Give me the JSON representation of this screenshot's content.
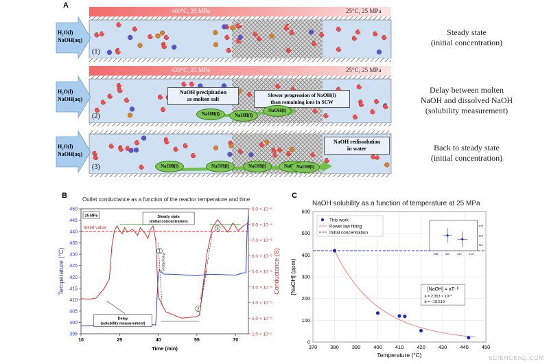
{
  "panelA": {
    "letter": "A",
    "inlet": {
      "water": "H₂O(l)",
      "naoh": "NaOH(aq)"
    },
    "rows": [
      {
        "num": "(1)",
        "hot": "400°C, 25 MPa",
        "cold": "25°C, 25 MPa",
        "desc": [
          "Steady state",
          "(initial concentration)"
        ],
        "notes": []
      },
      {
        "num": "(2)",
        "hot": "420°C, 25 MPa",
        "cold": "25°C, 25 MPa",
        "desc": [
          "Delay between molten",
          "NaOH and dissolved NaOH",
          "(solubility measurement)"
        ],
        "notes": [
          [
            "NaOH precipitation",
            "as molten salt"
          ],
          [
            "Slower progression of NaOH(l)",
            "than remaining ions in SCW"
          ]
        ],
        "droplets": [
          "NaOH(l)",
          "NaOH(l)",
          "NaOH(l)"
        ]
      },
      {
        "num": "(3)",
        "hot": "",
        "cold": "",
        "desc": [
          "Back to steady state",
          "(initial concentration)"
        ],
        "notes": [
          [
            "NaOH redissolution",
            "in water"
          ]
        ],
        "droplets": [
          "NaOH(l)",
          "NaOH(l)",
          "NaOH(l)",
          "NaOH(l)",
          "NaOH(l)"
        ]
      }
    ]
  },
  "panelB": {
    "letter": "B",
    "title": "Outlet conductance as a function of the reactor temperature and time",
    "xlabel": "Time (min)",
    "ylabel_left": "Temperature (°C)",
    "ylabel_right": "Conductance (S)",
    "pressure_box": "25 MPa",
    "labels": {
      "initial": "Initial value",
      "steady": [
        "Steady state",
        "(initial concentration)"
      ],
      "delay": [
        "Delay",
        "(solubility measurement)"
      ],
      "precip": "Precipitation",
      "back": "Back to initial value",
      "m1": "1",
      "m2": "2",
      "m3": "3"
    },
    "xticks": [
      "10",
      "25",
      "40",
      "55",
      "70"
    ],
    "yticks_left": [
      "395",
      "400",
      "405",
      "410",
      "415",
      "420",
      "425",
      "430",
      "435",
      "440",
      "445",
      "450"
    ],
    "yticks_right": [
      "1.0 × 10⁻⁶",
      "2.0 × 10⁻⁶",
      "3.0 × 10⁻⁶",
      "4.0 × 10⁻⁶",
      "5.0 × 10⁻⁶",
      "6.0 × 10⁻⁶",
      "7.0 × 10⁻⁶",
      "8.0 × 10⁻⁶",
      "9.0 × 10⁻⁶"
    ],
    "colors": {
      "temperature": "#2b3ad6",
      "conductance": "#e02a2a"
    }
  },
  "chart_data": {
    "type": "scatter",
    "title": "NaOH solubility as a function of temperature at 25 MPa",
    "xlabel": "Temperature (°C)",
    "ylabel": "[NaOH] (ppm)",
    "xlim": [
      370,
      450
    ],
    "ylim": [
      0,
      600
    ],
    "xticks": [
      "370",
      "380",
      "390",
      "400",
      "410",
      "420",
      "430",
      "440",
      "450"
    ],
    "yticks": [
      "0",
      "100",
      "200",
      "300",
      "400",
      "500",
      "600"
    ],
    "series": [
      {
        "name": "This work",
        "x": [
          380,
          400,
          410,
          412.5,
          420,
          442
        ],
        "y": [
          420,
          133,
          120,
          118,
          52,
          20
        ]
      }
    ],
    "fit_name": "Power law fitting",
    "initial_name": "Initial concentration",
    "initial_value": 420,
    "equation": "[NaOH] = aT⁻ᵇ",
    "params": [
      "a = 2.353 × 10⁵⁴",
      "b = −18.510"
    ],
    "inset": {
      "xticks": [
        "408",
        "410",
        "412",
        "414"
      ],
      "yticks": [
        "115",
        "120",
        "125"
      ]
    },
    "colors": {
      "points": "#1a2bb8",
      "fit": "#f08080",
      "initial": "#2a3ad0"
    },
    "grid": true,
    "legend": "top-left"
  },
  "panelC": {
    "letter": "C"
  },
  "watermark": "SCIENCEAQ.COM"
}
